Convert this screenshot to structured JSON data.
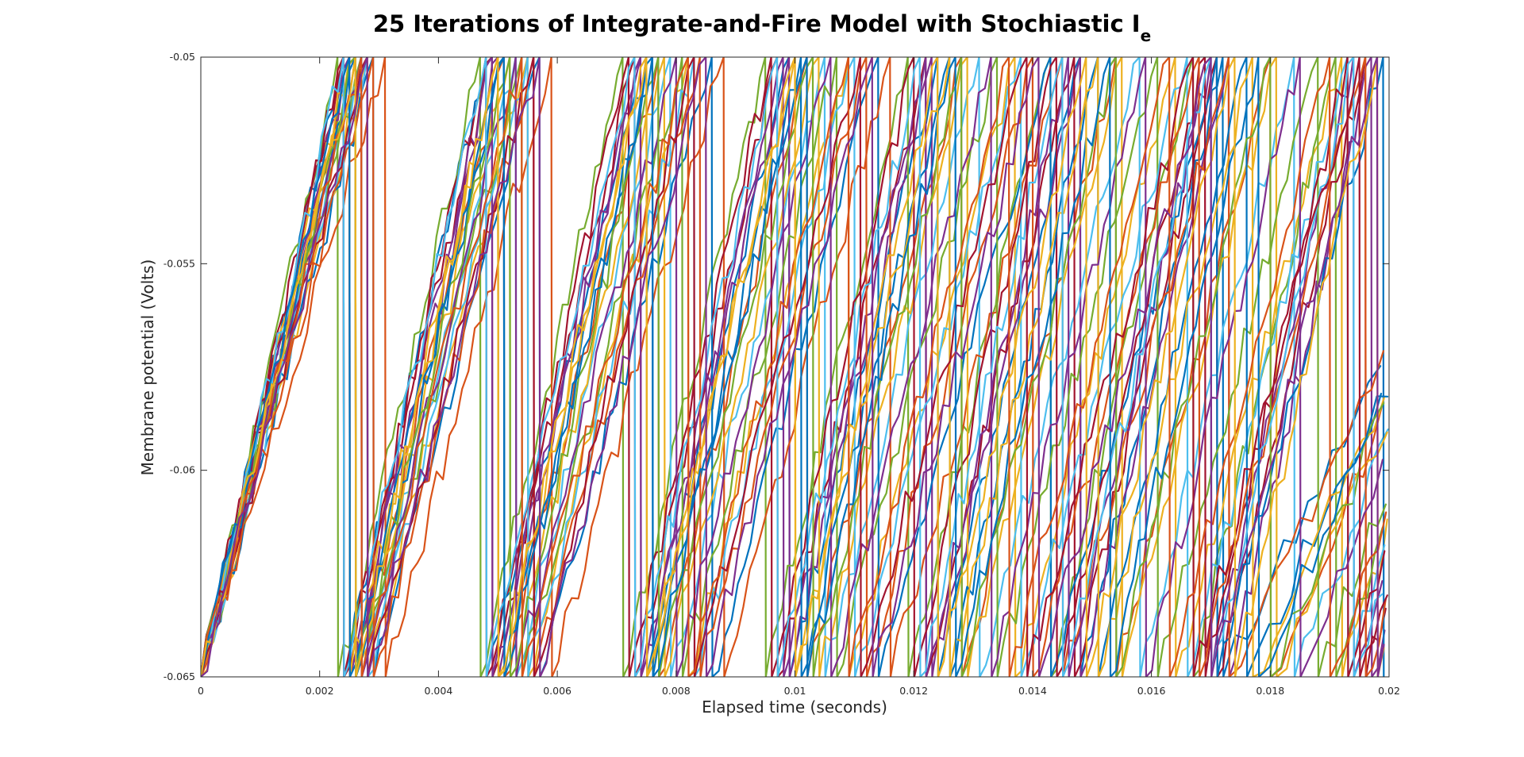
{
  "chart_data": {
    "type": "line",
    "title": "25 Iterations of Integrate-and-Fire Model with Stochiastic I",
    "title_subscript": "e",
    "xlabel": "Elapsed time (seconds)",
    "ylabel": "Membrane potential (Volts)",
    "xlim": [
      0,
      0.02
    ],
    "ylim": [
      -0.065,
      -0.05
    ],
    "xticks": [
      0,
      0.002,
      0.004,
      0.006,
      0.008,
      0.01,
      0.012,
      0.014,
      0.016,
      0.018,
      0.02
    ],
    "xtick_labels": [
      "0",
      "0.002",
      "0.004",
      "0.006",
      "0.008",
      "0.01",
      "0.012",
      "0.014",
      "0.016",
      "0.018",
      "0.02"
    ],
    "yticks": [
      -0.065,
      -0.06,
      -0.055,
      -0.05
    ],
    "ytick_labels": [
      "-0.065",
      "-0.06",
      "-0.055",
      "-0.05"
    ],
    "grid": false,
    "legend": "none",
    "series_count": 25,
    "v_reset": -0.065,
    "v_threshold": -0.05,
    "colors": [
      "#0072bd",
      "#d95319",
      "#edb120",
      "#7e2f8e",
      "#77ac30",
      "#4dbeee",
      "#a2142f"
    ],
    "series": [
      {
        "spike_times": [
          0.0024,
          0.0048,
          0.0075,
          0.0099,
          0.0124,
          0.0148,
          0.0172
        ]
      },
      {
        "spike_times": [
          0.0026,
          0.0051,
          0.0077,
          0.0102,
          0.0128,
          0.0154,
          0.018
        ]
      },
      {
        "spike_times": [
          0.0028,
          0.0055,
          0.0082,
          0.0109,
          0.0137,
          0.0164,
          0.0192
        ]
      },
      {
        "spike_times": [
          0.0025,
          0.005,
          0.0074,
          0.0099,
          0.0123,
          0.0148,
          0.0173,
          0.0197
        ]
      },
      {
        "spike_times": [
          0.0023,
          0.0047,
          0.0071,
          0.0095,
          0.0119,
          0.0143,
          0.0167,
          0.0191
        ]
      },
      {
        "spike_times": [
          0.0027,
          0.0053,
          0.0079,
          0.0105,
          0.0131,
          0.0158,
          0.0184
        ]
      },
      {
        "spike_times": [
          0.0024,
          0.0049,
          0.0073,
          0.0097,
          0.0122,
          0.0147,
          0.0171,
          0.0196
        ]
      },
      {
        "spike_times": [
          0.0029,
          0.0057,
          0.0086,
          0.0114,
          0.0143,
          0.0171,
          0.0199
        ]
      },
      {
        "spike_times": [
          0.0031,
          0.0059,
          0.0088,
          0.0116,
          0.0145,
          0.0173
        ]
      },
      {
        "spike_times": [
          0.0026,
          0.0052,
          0.0078,
          0.0104,
          0.0129,
          0.0155,
          0.0181
        ]
      },
      {
        "spike_times": [
          0.0025,
          0.0049,
          0.0074,
          0.0098,
          0.0122,
          0.0146,
          0.017,
          0.0194
        ]
      },
      {
        "spike_times": [
          0.0027,
          0.0054,
          0.0081,
          0.0107,
          0.0134,
          0.0161,
          0.0188
        ]
      },
      {
        "spike_times": [
          0.0028,
          0.0055,
          0.0083,
          0.011,
          0.0138,
          0.0166,
          0.0193
        ]
      },
      {
        "spike_times": [
          0.0024,
          0.0048,
          0.0072,
          0.0096,
          0.012,
          0.0144,
          0.0169,
          0.0193
        ]
      },
      {
        "spike_times": [
          0.0026,
          0.0051,
          0.0076,
          0.0101,
          0.0126,
          0.0151,
          0.0176
        ]
      },
      {
        "spike_times": [
          0.0029,
          0.0056,
          0.0084,
          0.0112,
          0.014,
          0.0168,
          0.0196
        ]
      },
      {
        "spike_times": [
          0.0025,
          0.005,
          0.0075,
          0.01,
          0.0126,
          0.0151,
          0.0177
        ]
      },
      {
        "spike_times": [
          0.0027,
          0.0053,
          0.008,
          0.0106,
          0.0133,
          0.0159,
          0.0185
        ]
      },
      {
        "spike_times": [
          0.0026,
          0.0052,
          0.0077,
          0.0103,
          0.0128,
          0.0154,
          0.018
        ]
      },
      {
        "spike_times": [
          0.0024,
          0.0048,
          0.0073,
          0.0097,
          0.0121,
          0.0145,
          0.017,
          0.0194
        ]
      },
      {
        "spike_times": [
          0.0028,
          0.0056,
          0.0083,
          0.0111,
          0.0139,
          0.0167,
          0.0195
        ]
      },
      {
        "spike_times": [
          0.0025,
          0.0051,
          0.0076,
          0.0102,
          0.0127,
          0.0153,
          0.0178
        ]
      },
      {
        "spike_times": [
          0.0027,
          0.0054,
          0.0082,
          0.0109,
          0.0136,
          0.0163,
          0.019
        ]
      },
      {
        "spike_times": [
          0.0026,
          0.005,
          0.0075,
          0.01,
          0.0124,
          0.0149,
          0.0174,
          0.0198
        ]
      },
      {
        "spike_times": [
          0.0028,
          0.0057,
          0.0085,
          0.0113,
          0.0141,
          0.017,
          0.0198
        ]
      }
    ]
  }
}
